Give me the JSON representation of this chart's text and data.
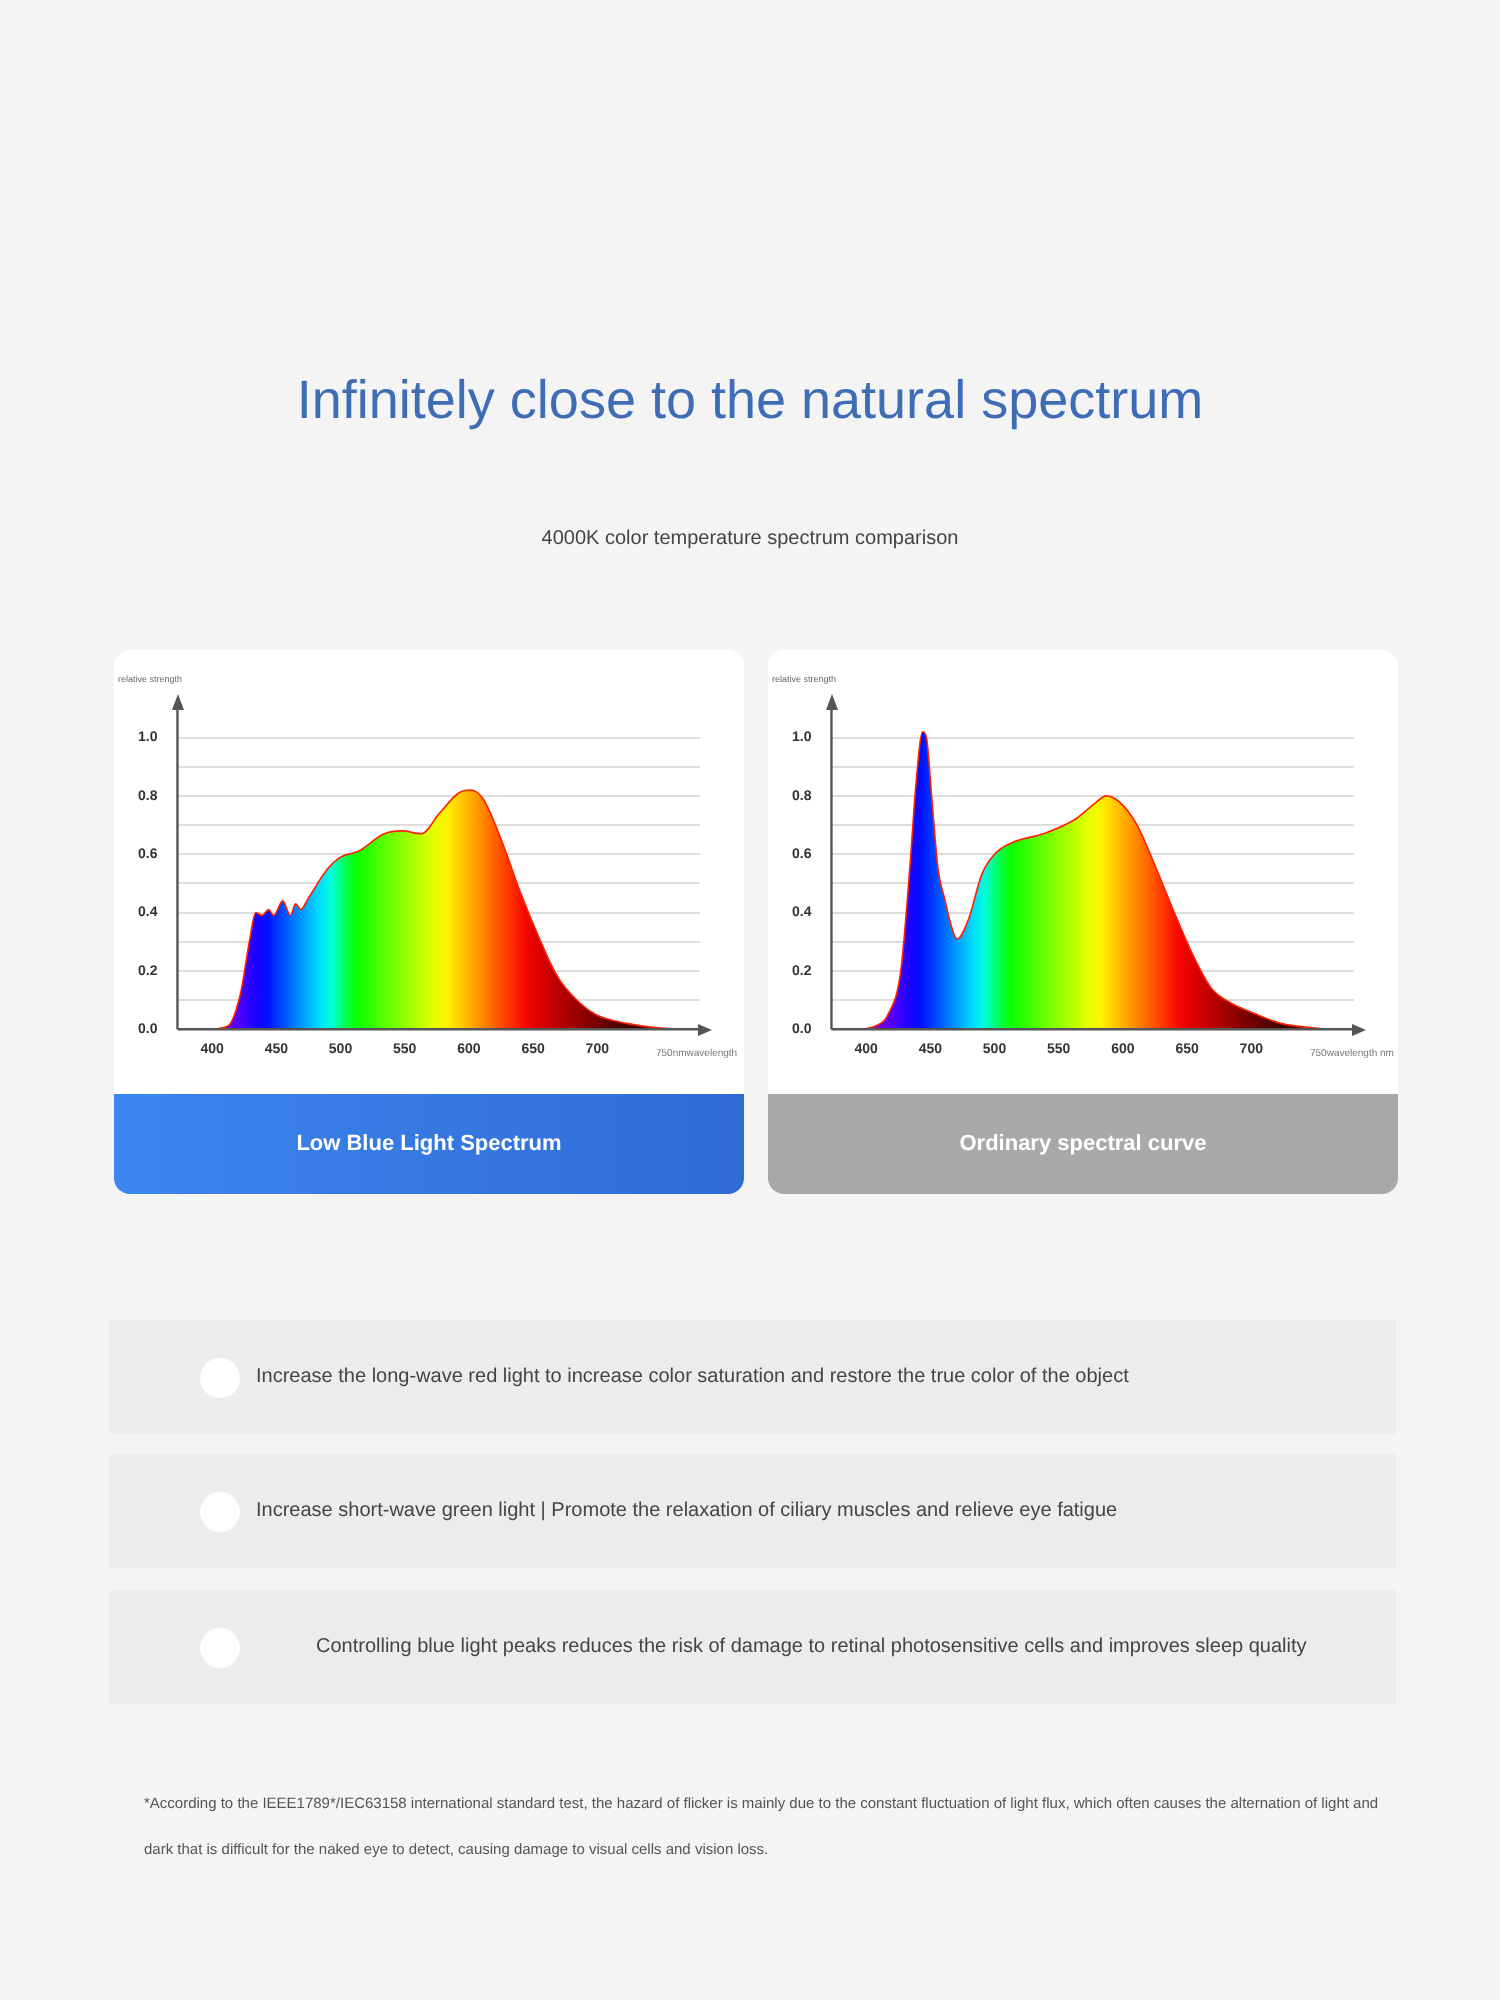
{
  "chart_data": [
    {
      "type": "area",
      "title": "Infinitely close to the natural spectrum",
      "subtitle": "4000K color temperature spectrum comparison",
      "ylabel": "relative strength",
      "xlabel": "750nmwavelength",
      "annotations": [
        "Low Blue Light Spectrum"
      ],
      "xlim": [
        373,
        780
      ],
      "ylim": [
        0,
        1.1
      ],
      "xticks": [
        400,
        450,
        500,
        550,
        600,
        650,
        700
      ],
      "yticks": [
        {
          "value": 0,
          "label": "0.0"
        },
        {
          "value": 0.1,
          "label": null
        },
        {
          "value": 0.2,
          "label": "0.2"
        },
        {
          "value": 0.3,
          "label": null
        },
        {
          "value": 0.4,
          "label": "0.4"
        },
        {
          "value": 0.5,
          "label": null
        },
        {
          "value": 0.6,
          "label": "0.6"
        },
        {
          "value": 0.7,
          "label": null
        },
        {
          "value": 0.8,
          "label": "0.8"
        },
        {
          "value": 0.9,
          "label": null
        },
        {
          "value": 1,
          "label": "1.0"
        }
      ],
      "grid": "y",
      "legend": false,
      "series": [
        {
          "color": "#ff2000",
          "x": [
            397,
            412,
            422,
            429,
            434,
            439,
            444,
            448,
            455,
            461,
            465,
            469,
            475,
            490,
            500,
            514,
            534,
            548,
            563,
            577,
            592,
            601,
            611,
            626,
            640,
            655,
            669,
            684,
            699,
            723,
            747,
            776
          ],
          "values": [
            0,
            0.01,
            0.12,
            0.3,
            0.4,
            0.39,
            0.41,
            0.39,
            0.44,
            0.39,
            0.43,
            0.41,
            0.45,
            0.55,
            0.59,
            0.61,
            0.67,
            0.68,
            0.67,
            0.74,
            0.81,
            0.82,
            0.79,
            0.64,
            0.47,
            0.31,
            0.18,
            0.1,
            0.05,
            0.02,
            0.005,
            0
          ]
        }
      ]
    },
    {
      "type": "area",
      "ylabel": "relative strength",
      "xlabel": "750wavelength nm",
      "annotations": [
        "Ordinary spectral curve"
      ],
      "xlim": [
        373,
        780
      ],
      "ylim": [
        0,
        1.1
      ],
      "xticks": [
        400,
        450,
        500,
        550,
        600,
        650,
        700
      ],
      "yticks": [
        {
          "value": 0,
          "label": "0.0"
        },
        {
          "value": 0.1,
          "label": null
        },
        {
          "value": 0.2,
          "label": "0.2"
        },
        {
          "value": 0.3,
          "label": null
        },
        {
          "value": 0.4,
          "label": "0.4"
        },
        {
          "value": 0.5,
          "label": null
        },
        {
          "value": 0.6,
          "label": "0.6"
        },
        {
          "value": 0.7,
          "label": null
        },
        {
          "value": 0.8,
          "label": "0.8"
        },
        {
          "value": 0.9,
          "label": null
        },
        {
          "value": 1,
          "label": "1.0"
        }
      ],
      "grid": "y",
      "legend": false,
      "series": [
        {
          "color": "#ff2000",
          "x": [
            397,
            407,
            417,
            427,
            434,
            439,
            444,
            447,
            451,
            456,
            461,
            468,
            471,
            480,
            490,
            500,
            514,
            538,
            563,
            577,
            587,
            597,
            611,
            626,
            640,
            655,
            669,
            684,
            699,
            723,
            757
          ],
          "values": [
            0,
            0.01,
            0.05,
            0.2,
            0.55,
            0.85,
            1.02,
            1,
            0.8,
            0.55,
            0.45,
            0.33,
            0.31,
            0.38,
            0.53,
            0.6,
            0.64,
            0.67,
            0.72,
            0.77,
            0.8,
            0.78,
            0.7,
            0.55,
            0.4,
            0.25,
            0.14,
            0.09,
            0.06,
            0.02,
            0
          ]
        }
      ]
    },
    {
      "type": "other",
      "annotations": [
        "Increase the long-wave red light to increase color saturation and restore the true color of the object",
        "Increase short-wave green light | Promote the relaxation of ciliary muscles and relieve eye fatigue",
        "Controlling blue light peaks reduces the risk of damage to retinal photosensitive cells and improves sleep quality",
        "*According to the IEEE1789*/IEC63158 international standard test, the hazard of flicker is mainly due to the constant fluctuation of light flux, which often causes the alternation of light and dark that is difficult for the naked eye to detect, causing damage to visual cells and vision loss."
      ]
    }
  ]
}
